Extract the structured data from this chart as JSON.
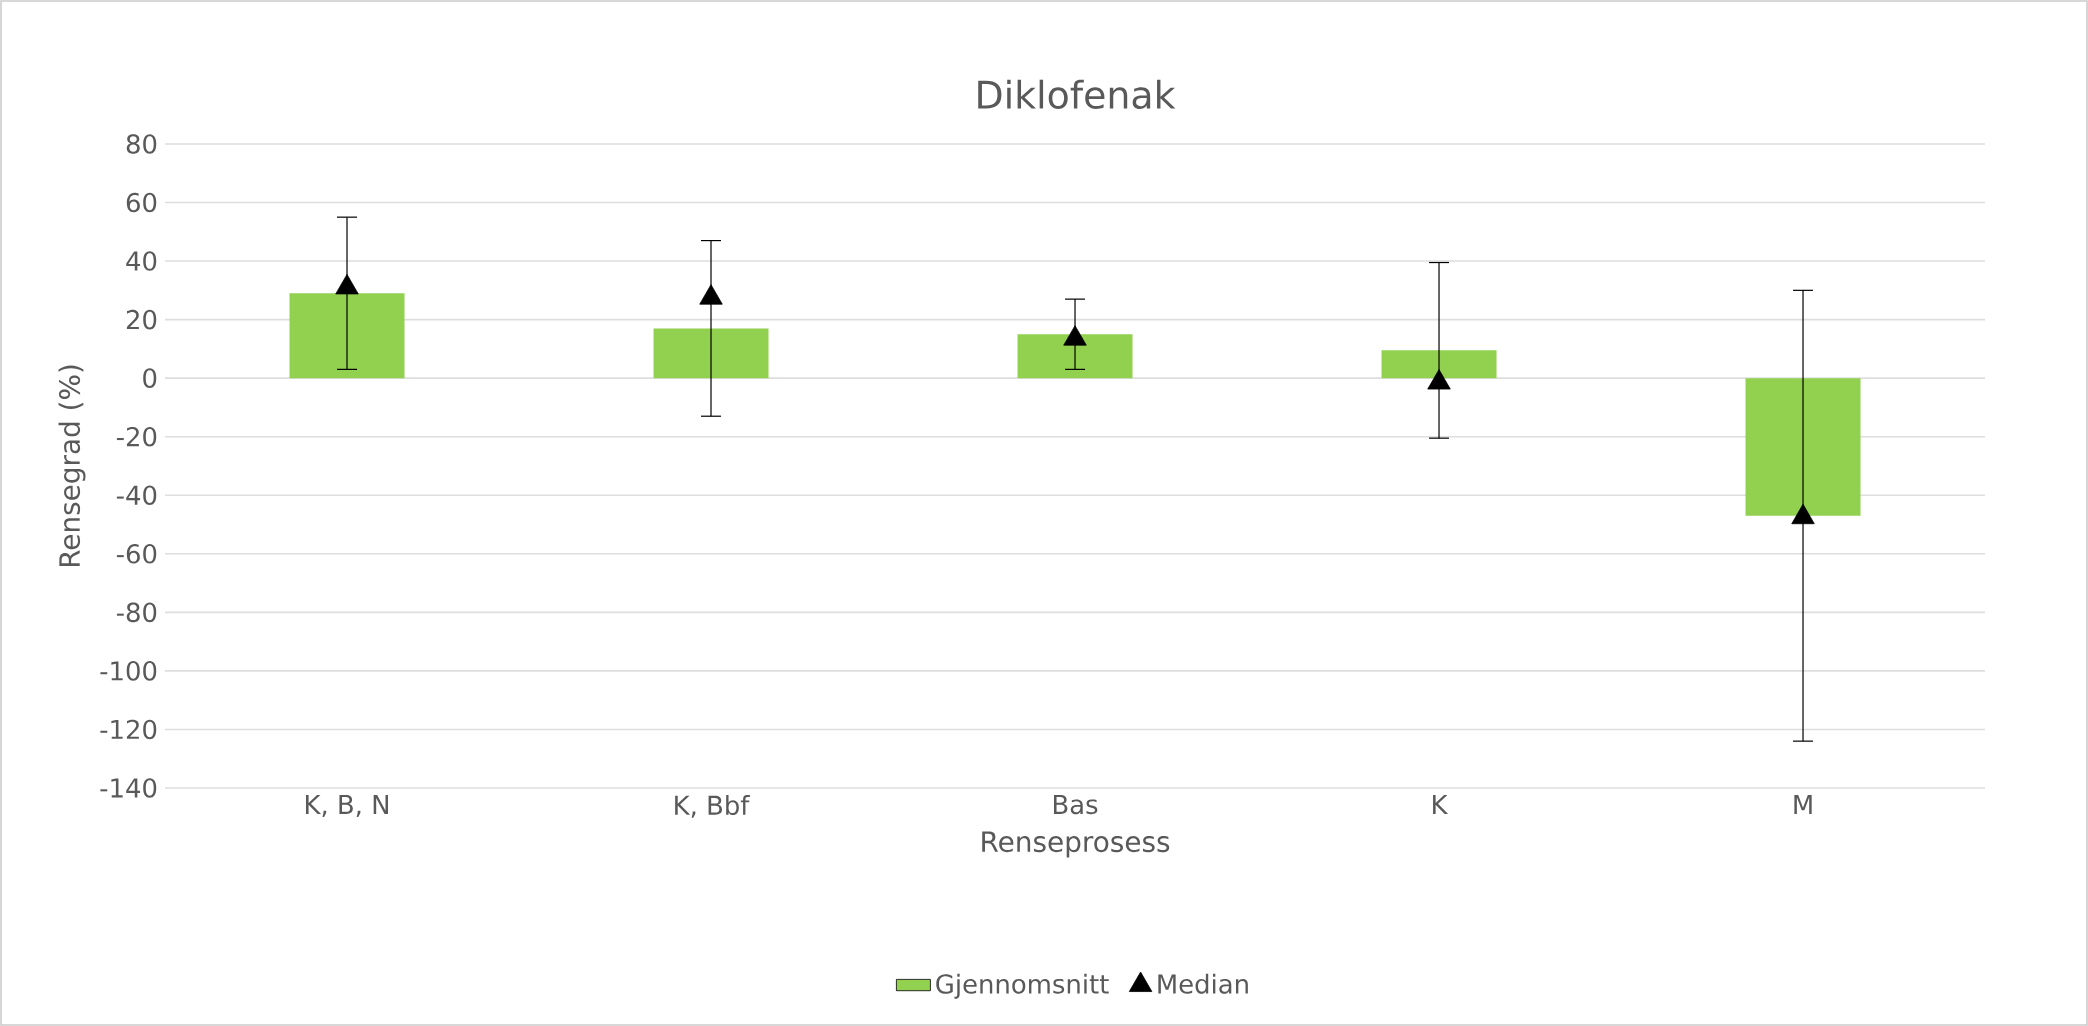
{
  "chart_data": {
    "type": "bar",
    "title": "Diklofenak",
    "xlabel": "Renseprosess",
    "ylabel": "Rensegrad (%)",
    "categories": [
      "K, B, N",
      "K, Bbf",
      "Bas",
      "K",
      "M"
    ],
    "series": [
      {
        "name": "Gjennomsnitt",
        "color": "#92d050",
        "values": [
          29,
          17,
          15,
          9.5,
          -47
        ],
        "errors": [
          26,
          30,
          12,
          30,
          77
        ]
      },
      {
        "name": "Median",
        "type": "scatter",
        "color": "#000000",
        "marker": "triangle",
        "x": [
          "K, B, N",
          "K, Bbf",
          "Bas",
          "K",
          "M"
        ],
        "values": [
          31,
          27.5,
          13.5,
          -1.5,
          -47.5
        ]
      }
    ],
    "ylim": [
      -140,
      80
    ],
    "yticks": [
      -140,
      -120,
      -100,
      -80,
      -60,
      -40,
      -20,
      0,
      20,
      40,
      60,
      80
    ],
    "grid": "y",
    "legend": "bottom"
  }
}
